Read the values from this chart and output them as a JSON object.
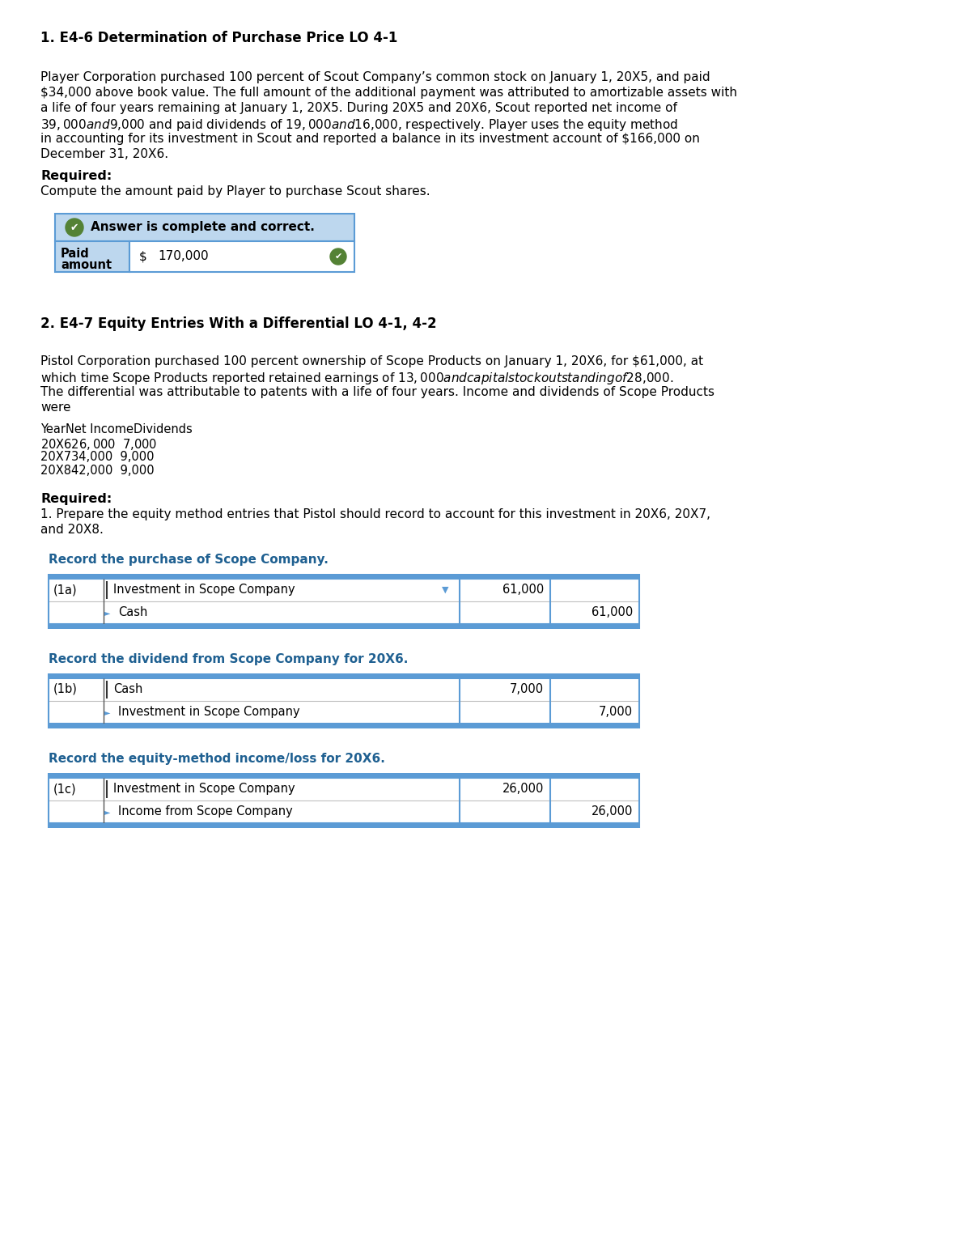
{
  "bg_color": "#ffffff",
  "s1_title": "1. E4-6 Determination of Purchase Price LO 4-1",
  "s1_body_lines": [
    "Player Corporation purchased 100 percent of Scout Company’s common stock on January 1, 20X5, and paid",
    "$34,000 above book value. The full amount of the additional payment was attributed to amortizable assets with",
    "a life of four years remaining at January 1, 20X5. During 20X5 and 20X6, Scout reported net income of",
    "$39,000 and $9,000 and paid dividends of $19,000 and $16,000, respectively. Player uses the equity method",
    "in accounting for its investment in Scout and reported a balance in its investment account of $166,000 on",
    "December 31, 20X6."
  ],
  "req1_label": "Required:",
  "req1_body": "Compute the amount paid by Player to purchase Scout shares.",
  "answer_banner": "✔  Answer is complete and correct.",
  "paid_label_line1": "Paid",
  "paid_label_line2": "amount",
  "paid_dollar": "$",
  "paid_value": "170,000",
  "s2_title": "2. E4-7 Equity Entries With a Differential LO 4-1, 4-2",
  "s2_body_lines": [
    "Pistol Corporation purchased 100 percent ownership of Scope Products on January 1, 20X6, for $61,000, at",
    "which time Scope Products reported retained earnings of $13,000 and capital stock outstanding of $28,000.",
    "The differential was attributable to patents with a life of four years. Income and dividends of Scope Products",
    "were"
  ],
  "tbl_header_cols": [
    "Year",
    "Net Income",
    "Dividends"
  ],
  "tbl_rows": [
    [
      "20X6",
      "$  26,000",
      "$  7,000"
    ],
    [
      "20X7",
      "34,000",
      "9,000"
    ],
    [
      "20X8",
      "42,000",
      "9,000"
    ]
  ],
  "req2_label": "Required:",
  "req2_body_lines": [
    "1. Prepare the equity method entries that Pistol should record to account for this investment in 20X6, 20X7,",
    "and 20X8."
  ],
  "journals": [
    {
      "label": "Record the purchase of Scope Company.",
      "ref": "(1a)",
      "debit_acct": "Investment in Scope Company",
      "debit_amt": "61,000",
      "credit_acct": "Cash",
      "credit_amt": "61,000",
      "show_dropdown": true
    },
    {
      "label": "Record the dividend from Scope Company for 20X6.",
      "ref": "(1b)",
      "debit_acct": "Cash",
      "debit_amt": "7,000",
      "credit_acct": "Investment in Scope Company",
      "credit_amt": "7,000",
      "show_dropdown": false
    },
    {
      "label": "Record the equity-method income/loss for 20X6.",
      "ref": "(1c)",
      "debit_acct": "Investment in Scope Company",
      "debit_amt": "26,000",
      "credit_acct": "Income from Scope Company",
      "credit_amt": "26,000",
      "show_dropdown": false
    }
  ],
  "blue_dark": "#2E75B6",
  "blue_mid": "#5B9BD5",
  "blue_light": "#BDD7EE",
  "blue_header": "#4472C4",
  "green_check": "#548235",
  "label_color": "#1F6091",
  "lw": 1.5
}
